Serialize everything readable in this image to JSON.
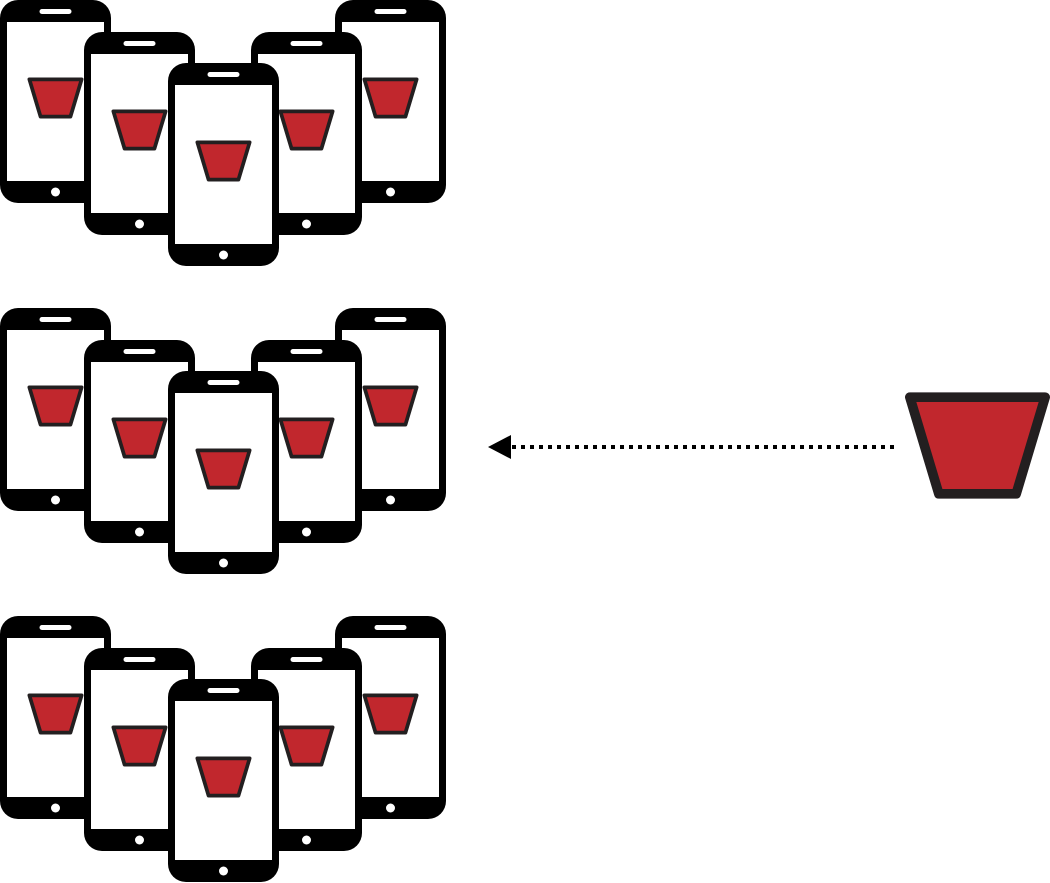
{
  "diagram": {
    "groups": [
      {
        "id": "group-1",
        "phones": 5
      },
      {
        "id": "group-2",
        "phones": 5
      },
      {
        "id": "group-3",
        "phones": 5
      }
    ],
    "source_icon": "bucket-icon",
    "phone_icon": "smartphone-icon",
    "arrow": {
      "style": "dotted",
      "from": "source-bucket",
      "to": "group-2"
    },
    "colors": {
      "bucket_fill": "#c1272d",
      "bucket_stroke": "#231f20",
      "phone_body": "#000000",
      "phone_screen": "#ffffff",
      "background": "#ffffff"
    }
  }
}
